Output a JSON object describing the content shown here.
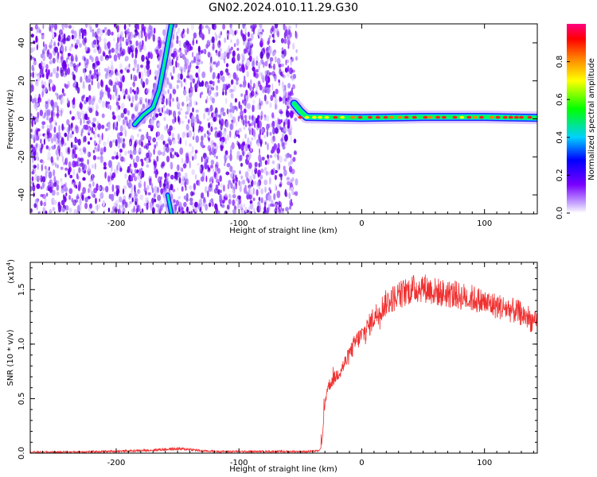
{
  "title": "GN02.2024.010.11.29.G30",
  "colors": {
    "trace": "#f03030",
    "axis": "#000000"
  },
  "chart_data": [
    {
      "type": "heatmap",
      "xlabel": "Height of straight line (km)",
      "ylabel": "Frequency (Hz)",
      "xlim": [
        -270,
        143
      ],
      "ylim": [
        -50,
        50
      ],
      "xticks": [
        -200,
        -100,
        0,
        100
      ],
      "xtick_labels": [
        "-200",
        "-100",
        "0",
        "100"
      ],
      "yticks": [
        -40,
        -20,
        0,
        20,
        40
      ],
      "ytick_labels": [
        "-40",
        "-20",
        "0",
        "20",
        "40"
      ],
      "grid": false,
      "noise_region_x": [
        -270,
        -53
      ],
      "main_ridge": {
        "x": [
          -55,
          -50,
          -45,
          0,
          50,
          100,
          143
        ],
        "y": [
          8,
          4,
          1,
          0.5,
          1,
          1,
          0.5
        ]
      },
      "curved_ridge": {
        "x": [
          -185,
          -178,
          -170,
          -165,
          -160,
          -155
        ],
        "y": [
          -3,
          2,
          6,
          15,
          32,
          50
        ]
      },
      "lower_streak": {
        "x": [
          -158,
          -155
        ],
        "y": [
          -40,
          -50
        ]
      },
      "colorbar": {
        "label": "Normalized spectral amplitude",
        "ticks": [
          0.0,
          0.2,
          0.4,
          0.6,
          0.8
        ],
        "tick_labels": [
          "0.0",
          "0.2",
          "0.4",
          "0.6",
          "0.8"
        ],
        "range": [
          0,
          1
        ]
      }
    },
    {
      "type": "line",
      "xlabel": "Height of straight line (km)",
      "ylabel": "SNR (10 * v/v)",
      "scale_label": "(x10",
      "scale_exp": "4",
      "scale_close": ")",
      "xlim": [
        -270,
        143
      ],
      "ylim": [
        0,
        1.75
      ],
      "xticks": [
        -200,
        -100,
        0,
        100
      ],
      "xtick_labels": [
        "-200",
        "-100",
        "0",
        "100"
      ],
      "yticks": [
        0,
        0.5,
        1.0,
        1.5
      ],
      "ytick_labels": [
        "0.0",
        "0.5",
        "1.0",
        "1.5"
      ],
      "grid": false,
      "series": [
        {
          "color": "#f03030",
          "x": [
            -270,
            -250,
            -230,
            -210,
            -190,
            -175,
            -160,
            -150,
            -140,
            -130,
            -115,
            -100,
            -80,
            -60,
            -45,
            -35,
            -33,
            -32,
            -30,
            -28,
            -25,
            -20,
            -15,
            -10,
            -5,
            0,
            5,
            10,
            20,
            30,
            40,
            50,
            60,
            70,
            80,
            90,
            100,
            110,
            120,
            130,
            143
          ],
          "y": [
            0.01,
            0.01,
            0.012,
            0.015,
            0.02,
            0.025,
            0.035,
            0.04,
            0.035,
            0.02,
            0.015,
            0.015,
            0.015,
            0.015,
            0.015,
            0.02,
            0.05,
            0.15,
            0.45,
            0.6,
            0.65,
            0.72,
            0.8,
            0.9,
            1.02,
            1.08,
            1.15,
            1.25,
            1.38,
            1.45,
            1.5,
            1.52,
            1.48,
            1.46,
            1.44,
            1.42,
            1.38,
            1.35,
            1.32,
            1.28,
            1.18
          ]
        }
      ]
    }
  ]
}
